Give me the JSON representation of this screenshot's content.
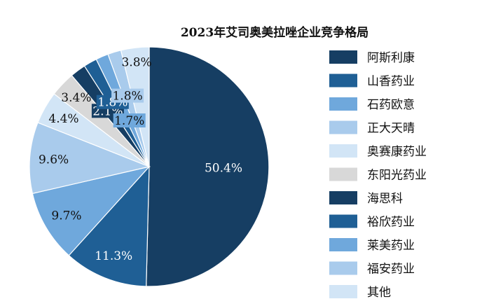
{
  "chart_data": {
    "type": "pie",
    "title": "2023年艾司奥美拉唑企业竞争格局",
    "legend_position": "right",
    "categories": [
      "阿斯利康",
      "山香药业",
      "石药欧意",
      "正大天晴",
      "奥赛康药业",
      "东阳光药业",
      "海思科",
      "裕欣药业",
      "莱美药业",
      "福安药业",
      "其他"
    ],
    "values": [
      50.4,
      11.3,
      9.7,
      9.6,
      4.4,
      3.4,
      2.1,
      1.8,
      1.7,
      1.8,
      3.8
    ],
    "value_labels": [
      "50.4%",
      "11.3%",
      "9.7%",
      "9.6%",
      "4.4%",
      "3.4%",
      "2.1%",
      "1.8%",
      "1.7%",
      "1.8%",
      "3.8%"
    ],
    "colors": [
      "#163E63",
      "#1F5F95",
      "#6FA8DC",
      "#A9CBEC",
      "#D2E5F6",
      "#D8D8D8",
      "#163E63",
      "#1F5F95",
      "#6FA8DC",
      "#A9CBEC",
      "#D2E5F6"
    ],
    "label_colors": [
      "#FFFFFF",
      "#FFFFFF",
      "#111111",
      "#111111",
      "#111111",
      "#111111",
      "#FFFFFF",
      "#FFFFFF",
      "#111111",
      "#111111",
      "#111111"
    ]
  }
}
